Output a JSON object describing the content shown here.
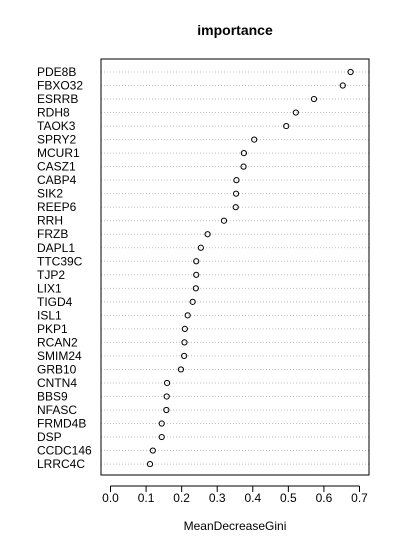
{
  "chart_data": {
    "type": "scatter",
    "title": "importance",
    "xlabel": "MeanDecreaseGini",
    "ylabel": "",
    "xlim": [
      0,
      0.7
    ],
    "xticks": [
      0.0,
      0.1,
      0.2,
      0.3,
      0.4,
      0.5,
      0.6,
      0.7
    ],
    "xtick_labels": [
      "0.0",
      "0.1",
      "0.2",
      "0.3",
      "0.4",
      "0.5",
      "0.6",
      "0.7"
    ],
    "grid": "dotted horizontal lines at each category",
    "marker": "open circle",
    "point_color": "#000000",
    "grid_color": "#bebebe",
    "categories": [
      "PDE8B",
      "FBXO32",
      "ESRRB",
      "RDH8",
      "TAOK3",
      "SPRY2",
      "MCUR1",
      "CASZ1",
      "CABP4",
      "SIK2",
      "REEP6",
      "RRH",
      "FRZB",
      "DAPL1",
      "TTC39C",
      "TJP2",
      "LIX1",
      "TIGD4",
      "ISL1",
      "PKP1",
      "RCAN2",
      "SMIM24",
      "GRB10",
      "CNTN4",
      "BBS9",
      "NFASC",
      "FRMD4B",
      "DSP",
      "CCDC146",
      "LRRC4C"
    ],
    "values": [
      0.675,
      0.653,
      0.572,
      0.521,
      0.494,
      0.404,
      0.375,
      0.374,
      0.354,
      0.353,
      0.352,
      0.319,
      0.273,
      0.254,
      0.241,
      0.241,
      0.24,
      0.231,
      0.217,
      0.209,
      0.208,
      0.207,
      0.198,
      0.159,
      0.158,
      0.157,
      0.144,
      0.144,
      0.119,
      0.111
    ]
  }
}
